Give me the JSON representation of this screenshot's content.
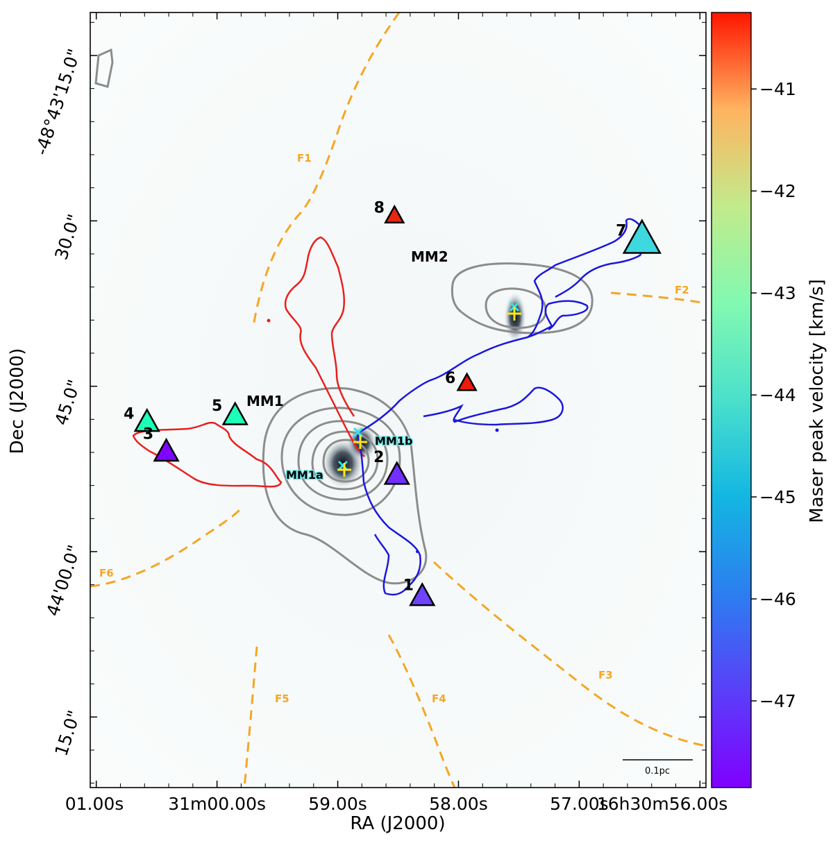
{
  "chart_data": {
    "type": "scatter",
    "xlabel": "RA (J2000)",
    "ylabel": "Dec (J2000)",
    "x_ticks": [
      "01.00s",
      "31m00.00s",
      "59.00s",
      "58.00s",
      "57.00s",
      "16h30m56.00s"
    ],
    "y_ticks": [
      "-48°43'15.0\"",
      "30.0\"",
      "45.0\"",
      "44'00.0\"",
      "15.0\""
    ],
    "xlim": [
      "16h31m01.05s",
      "16h30m55.95s"
    ],
    "ylim": [
      "-48°44'21.4\"",
      "-48°43'11.1\""
    ],
    "colorbar": {
      "label": "Maser peak velocity [km/s]",
      "ticks": [
        "−41",
        "−42",
        "−43",
        "−44",
        "−45",
        "−46",
        "−47"
      ],
      "vmin": -47.85,
      "vmax": -40.25,
      "colormap": "rainbow"
    },
    "masers": [
      {
        "id": "1",
        "ra": "16h30m58.30s",
        "dec": "-48°44'04.0\"",
        "velocity": -47.2
      },
      {
        "id": "2",
        "ra": "16h30m58.51s",
        "dec": "-48°43'53.0\"",
        "velocity": -47.4
      },
      {
        "id": "3",
        "ra": "16h31m00.42s",
        "dec": "-48°43'50.9\"",
        "velocity": -47.8
      },
      {
        "id": "4",
        "ra": "16h31m00.58s",
        "dec": "-48°43'48.2\"",
        "velocity": -44.1
      },
      {
        "id": "5",
        "ra": "16h30m59.85s",
        "dec": "-48°43'47.6\"",
        "velocity": -44.2
      },
      {
        "id": "6",
        "ra": "16h30m57.93s",
        "dec": "-48°43'44.7\"",
        "velocity": -40.5
      },
      {
        "id": "7",
        "ra": "16h30m56.48s",
        "dec": "-48°43'31.6\"",
        "velocity": -45.4
      },
      {
        "id": "8",
        "ra": "16h30m58.53s",
        "dec": "-48°43'29.5\"",
        "velocity": -40.6
      }
    ],
    "regions": [
      {
        "name": "MM1"
      },
      {
        "name": "MM2"
      },
      {
        "name": "MM1a"
      },
      {
        "name": "MM1b"
      }
    ],
    "filaments": [
      "F1",
      "F2",
      "F3",
      "F4",
      "F5",
      "F6"
    ],
    "scale_bar": "0.1pc"
  },
  "colors": {
    "filament": "#f5a623",
    "red_outflow": "#e8201e",
    "blue_outflow": "#1a16e0",
    "contour": "#8c8c8c",
    "marker_cross": "#2ee6e6",
    "marker_plus": "#ffe81a"
  }
}
